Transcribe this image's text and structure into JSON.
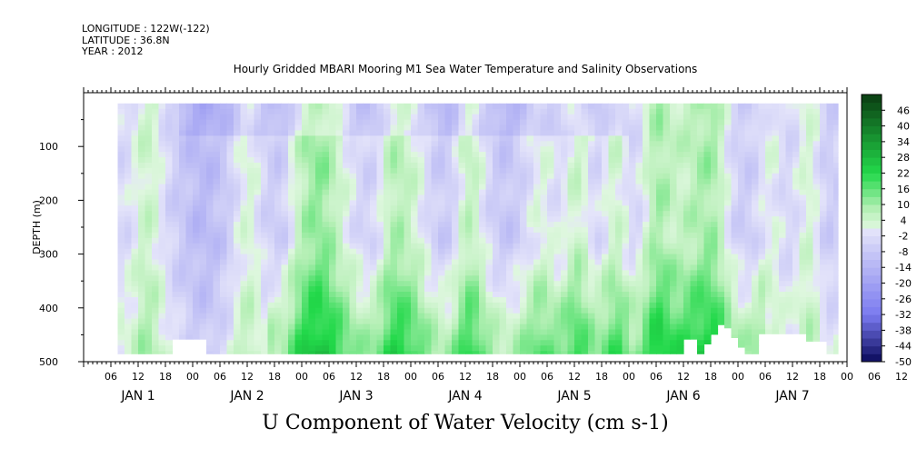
{
  "header": {
    "longitude": "LONGITUDE : 122W(-122)",
    "latitude": "LATITUDE : 36.8N",
    "year": "YEAR : 2012"
  },
  "chart_data": {
    "type": "heatmap",
    "title": "Hourly Gridded MBARI Mooring M1 Sea Water Temperature and Salinity Observations",
    "footer": "U Component of Water Velocity (cm s-1)",
    "ylabel": "DEPTH (m)",
    "ylim": [
      500,
      0
    ],
    "y_ticks": [
      100,
      200,
      300,
      400,
      500
    ],
    "xlim_hours": [
      0,
      168
    ],
    "x_hour_labels": [
      "06",
      "12",
      "18",
      "00",
      "06",
      "12",
      "18",
      "00",
      "06",
      "12",
      "18",
      "00",
      "06",
      "12",
      "18",
      "00",
      "06",
      "12",
      "18",
      "00",
      "06",
      "12",
      "18",
      "00",
      "06",
      "12",
      "18",
      "00",
      "06",
      "12",
      "18"
    ],
    "day_labels": [
      "JAN 1",
      "JAN 2",
      "JAN 3",
      "JAN 4",
      "JAN 5",
      "JAN 6",
      "JAN 7"
    ],
    "colorbar_labels": [
      "46",
      "40",
      "34",
      "28",
      "22",
      "16",
      "10",
      "4",
      "-2",
      "-8",
      "-14",
      "-20",
      "-26",
      "-32",
      "-38",
      "-44",
      "-50"
    ],
    "colorbar_range": [
      -50,
      52
    ],
    "colorbar_step": 3,
    "data_depth_range": [
      20,
      485
    ],
    "data_start_hour": 7.5,
    "data_end_hour": 166,
    "colors": {
      "strong_positive": "#0b3d12",
      "positive": "#22d94a",
      "weak_positive": "#b8f0b8",
      "weak_negative": "#c8c8f6",
      "negative": "#7a7af0",
      "strong_negative": "#0a0a5a"
    }
  }
}
